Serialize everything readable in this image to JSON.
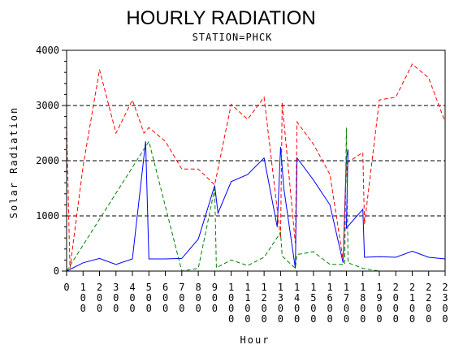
{
  "chart_data": {
    "type": "line",
    "title": "HOURLY RADIATION",
    "subtitle": "STATION=PHCK",
    "xlabel": "Hour",
    "ylabel": "Solar Radiation",
    "xlim": [
      0,
      2300
    ],
    "ylim": [
      0,
      4000
    ],
    "yticks": [
      0,
      1000,
      2000,
      3000,
      4000
    ],
    "ytick_labels": [
      "0",
      "1000",
      "2000",
      "3000",
      "4000"
    ],
    "xtick_labels": [
      "0",
      "100",
      "200",
      "300",
      "400",
      "500",
      "600",
      "700",
      "800",
      "900",
      "1000",
      "1100",
      "1200",
      "1300",
      "1400",
      "1500",
      "1600",
      "1700",
      "1800",
      "1900",
      "2000",
      "2100",
      "2200",
      "2300"
    ],
    "grid": "horizontal dashed",
    "series": [
      {
        "color": "#0000ff",
        "dash": "solid",
        "points": [
          [
            0,
            0
          ],
          [
            100,
            150
          ],
          [
            200,
            230
          ],
          [
            300,
            120
          ],
          [
            400,
            220
          ],
          [
            480,
            2350
          ],
          [
            500,
            220
          ],
          [
            600,
            220
          ],
          [
            700,
            230
          ],
          [
            800,
            580
          ],
          [
            900,
            1550
          ],
          [
            920,
            1050
          ],
          [
            1000,
            1620
          ],
          [
            1100,
            1750
          ],
          [
            1200,
            2050
          ],
          [
            1280,
            800
          ],
          [
            1300,
            2250
          ],
          [
            1320,
            1500
          ],
          [
            1390,
            50
          ],
          [
            1400,
            2050
          ],
          [
            1500,
            1650
          ],
          [
            1600,
            1200
          ],
          [
            1680,
            150
          ],
          [
            1700,
            2050
          ],
          [
            1710,
            2200
          ],
          [
            1700,
            780
          ],
          [
            1800,
            1120
          ],
          [
            1810,
            250
          ],
          [
            1900,
            260
          ],
          [
            2000,
            250
          ],
          [
            2100,
            360
          ],
          [
            2200,
            250
          ],
          [
            2300,
            220
          ]
        ]
      },
      {
        "color": "#ff0000",
        "dash": "dashed",
        "points": [
          [
            0,
            2650
          ],
          [
            20,
            50
          ],
          [
            100,
            1900
          ],
          [
            200,
            3650
          ],
          [
            300,
            2500
          ],
          [
            400,
            3100
          ],
          [
            470,
            2500
          ],
          [
            500,
            2600
          ],
          [
            600,
            2350
          ],
          [
            700,
            1850
          ],
          [
            800,
            1850
          ],
          [
            900,
            1560
          ],
          [
            1000,
            3020
          ],
          [
            1100,
            2750
          ],
          [
            1200,
            3150
          ],
          [
            1300,
            600
          ],
          [
            1310,
            3050
          ],
          [
            1390,
            500
          ],
          [
            1400,
            2700
          ],
          [
            1500,
            2300
          ],
          [
            1600,
            1750
          ],
          [
            1680,
            200
          ],
          [
            1700,
            1950
          ],
          [
            1800,
            2150
          ],
          [
            1810,
            850
          ],
          [
            1900,
            3100
          ],
          [
            2000,
            3150
          ],
          [
            2100,
            3750
          ],
          [
            2200,
            3500
          ],
          [
            2300,
            2700
          ]
        ]
      },
      {
        "color": "#008000",
        "dash": "dashed",
        "points": [
          [
            0,
            0
          ],
          [
            500,
            2350
          ],
          [
            700,
            0
          ],
          [
            800,
            50
          ],
          [
            900,
            1500
          ],
          [
            910,
            60
          ],
          [
            1000,
            200
          ],
          [
            1100,
            100
          ],
          [
            1200,
            250
          ],
          [
            1300,
            700
          ],
          [
            1310,
            270
          ],
          [
            1390,
            50
          ],
          [
            1400,
            300
          ],
          [
            1500,
            350
          ],
          [
            1600,
            120
          ],
          [
            1690,
            120
          ],
          [
            1700,
            2600
          ],
          [
            1710,
            150
          ],
          [
            1800,
            50
          ],
          [
            1900,
            0
          ]
        ]
      }
    ]
  }
}
